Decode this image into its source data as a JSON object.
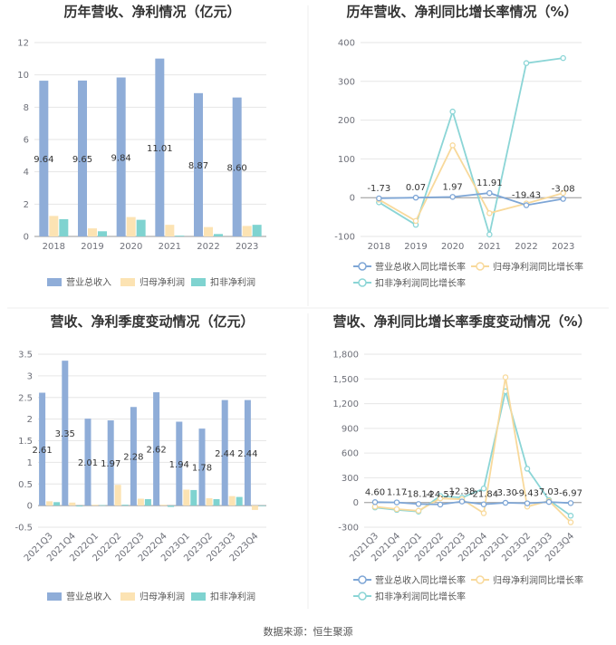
{
  "colors": {
    "revenue": "#8fadd8",
    "net_profit": "#fce3b3",
    "deducted_profit": "#7fd3d0",
    "revenue_line": "#7ea6d6",
    "net_line": "#f8d99b",
    "deducted_line": "#8bd5d6"
  },
  "source": "数据来源：恒生聚源",
  "chart_data": [
    {
      "type": "bar",
      "title": "历年营收、净利情况（亿元）",
      "categories": [
        "2018",
        "2019",
        "2020",
        "2021",
        "2022",
        "2023"
      ],
      "ylim": [
        0,
        12
      ],
      "yticks": [
        0,
        2,
        4,
        6,
        8,
        10,
        12
      ],
      "grid": true,
      "legend": "bottom",
      "series": [
        {
          "name": "营业总收入",
          "values": [
            9.64,
            9.65,
            9.84,
            11.01,
            8.87,
            8.6
          ],
          "labels": [
            "9.64",
            "9.65",
            "9.84",
            "11.01",
            "8.87",
            "8.60"
          ]
        },
        {
          "name": "归母净利润",
          "values": [
            1.27,
            0.5,
            1.2,
            0.72,
            0.58,
            0.65
          ]
        },
        {
          "name": "扣非净利润",
          "values": [
            1.07,
            0.32,
            1.03,
            0.05,
            0.15,
            0.72
          ]
        }
      ]
    },
    {
      "type": "line",
      "title": "历年营收、净利同比增长率情况（%）",
      "categories": [
        "2018",
        "2019",
        "2020",
        "2021",
        "2022",
        "2023"
      ],
      "ylim": [
        -100,
        400
      ],
      "yticks": [
        -100,
        0,
        100,
        200,
        300,
        400
      ],
      "grid": true,
      "legend": "bottom",
      "series": [
        {
          "name": "营业总收入同比增长率",
          "values": [
            -1.73,
            0.07,
            1.97,
            11.91,
            -19.43,
            -3.08
          ],
          "labels": [
            "-1.73",
            "0.07",
            "1.97",
            "11.91",
            "-19.43",
            "-3.08"
          ]
        },
        {
          "name": "归母净利润同比增长率",
          "values": [
            -5,
            -60,
            135,
            -40,
            -15,
            12
          ]
        },
        {
          "name": "扣非净利润同比增长率",
          "values": [
            -12,
            -70,
            222,
            -95,
            347,
            360
          ]
        }
      ]
    },
    {
      "type": "bar",
      "title": "营收、净利季度变动情况（亿元）",
      "categories": [
        "2021Q3",
        "2021Q4",
        "2022Q1",
        "2022Q2",
        "2022Q3",
        "2022Q4",
        "2023Q1",
        "2023Q2",
        "2023Q3",
        "2023Q4"
      ],
      "ylim": [
        -0.5,
        3.5
      ],
      "yticks": [
        -0.5,
        0,
        0.5,
        1,
        1.5,
        2,
        2.5,
        3,
        3.5
      ],
      "grid": true,
      "legend": "bottom",
      "series": [
        {
          "name": "营业总收入",
          "values": [
            2.61,
            3.35,
            2.01,
            1.97,
            2.28,
            2.62,
            1.94,
            1.78,
            2.44,
            2.44
          ],
          "labels": [
            "2.61",
            "3.35",
            "2.01",
            "1.97",
            "2.28",
            "2.62",
            "1.94",
            "1.78",
            "2.44",
            "2.44"
          ]
        },
        {
          "name": "归母净利润",
          "values": [
            0.1,
            0.07,
            0.02,
            0.48,
            0.16,
            0.02,
            0.37,
            0.17,
            0.22,
            -0.1
          ]
        },
        {
          "name": "扣非净利润",
          "values": [
            0.08,
            -0.02,
            0.01,
            0.02,
            0.15,
            -0.03,
            0.36,
            0.15,
            0.2,
            0.0
          ]
        }
      ]
    },
    {
      "type": "line",
      "title": "营收、净利同比增长率季度变动情况（%）",
      "categories": [
        "2021Q3",
        "2021Q4",
        "2022Q1",
        "2022Q2",
        "2022Q3",
        "2022Q4",
        "2023Q1",
        "2023Q2",
        "2023Q3",
        "2023Q4"
      ],
      "ylim": [
        -300,
        1800
      ],
      "yticks": [
        -300,
        0,
        300,
        600,
        900,
        1200,
        1500,
        1800
      ],
      "yticklabels": [
        "-300",
        "0",
        "300",
        "600",
        "900",
        "1,200",
        "1,500",
        "1,800"
      ],
      "grid": true,
      "legend": "bottom",
      "series": [
        {
          "name": "营业总收入同比增长率",
          "values": [
            4.6,
            1.17,
            -18.14,
            -24.57,
            12.38,
            -21.84,
            -3.3,
            -9.43,
            7.03,
            -6.97
          ],
          "labels": [
            "4.60",
            "1.17",
            "-18.14",
            "-24.57",
            "12.38",
            "-21.84",
            "-3.30",
            "-9.43",
            "7.03",
            "-6.97"
          ]
        },
        {
          "name": "归母净利润同比增长率",
          "values": [
            -50,
            -80,
            -100,
            50,
            40,
            -130,
            1520,
            -50,
            20,
            -240
          ]
        },
        {
          "name": "扣非净利润同比增长率",
          "values": [
            -60,
            -90,
            -110,
            80,
            60,
            170,
            1350,
            410,
            30,
            -160
          ]
        }
      ]
    }
  ]
}
